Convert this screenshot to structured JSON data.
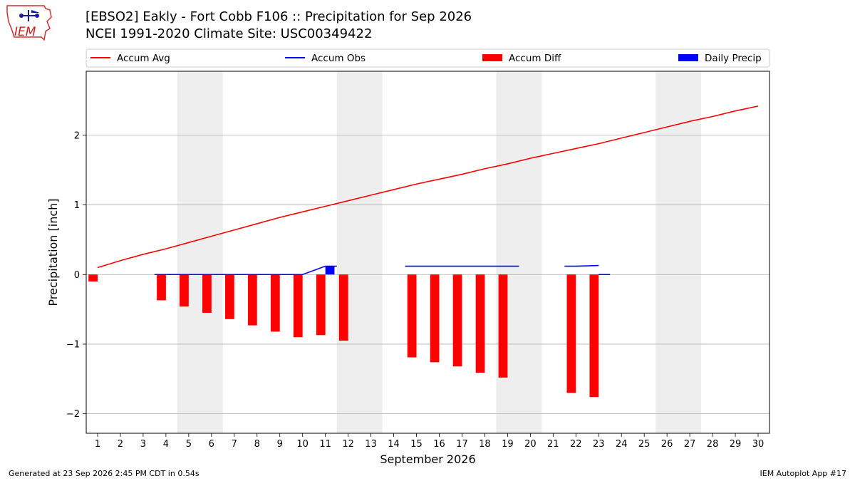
{
  "title": "[EBSO2] Eakly - Fort Cobb F106 :: Precipitation for Sep 2026",
  "subtitle": "NCEI 1991-2020 Climate Site: USC00349422",
  "footer_left": "Generated at 23 Sep 2026 2:45 PM CDT in 0.54s",
  "footer_right": "IEM Autoplot App #17",
  "logo_text": "IEM",
  "colors": {
    "avg": "#ff0000",
    "obs": "#0000ff",
    "diff": "#ff0000",
    "daily": "#0000ff",
    "weekend": "#eeeeee",
    "grid": "#b0b0b0"
  },
  "chart_data": {
    "type": "bar",
    "xlabel": "September 2026",
    "ylabel": "Precipitation [inch]",
    "xlim": [
      0.5,
      30.5
    ],
    "ylim": [
      -2.28,
      2.92
    ],
    "x_ticks": [
      1,
      2,
      3,
      4,
      5,
      6,
      7,
      8,
      9,
      10,
      11,
      12,
      13,
      14,
      15,
      16,
      17,
      18,
      19,
      20,
      21,
      22,
      23,
      24,
      25,
      26,
      27,
      28,
      29,
      30
    ],
    "y_ticks": [
      -2,
      -1,
      0,
      1,
      2
    ],
    "y_tick_labels": [
      "−2",
      "−1",
      "0",
      "1",
      "2"
    ],
    "grid": "y",
    "legend_position": "top",
    "weekend_spans": [
      [
        4.5,
        6.5
      ],
      [
        11.5,
        13.5
      ],
      [
        18.5,
        20.5
      ],
      [
        25.5,
        27.5
      ]
    ],
    "series": [
      {
        "name": "Accum Avg",
        "kind": "line",
        "x": [
          1,
          2,
          3,
          4,
          5,
          6,
          7,
          8,
          9,
          10,
          11,
          12,
          13,
          14,
          15,
          16,
          17,
          18,
          19,
          20,
          21,
          22,
          23,
          24,
          25,
          26,
          27,
          28,
          29,
          30
        ],
        "values": [
          0.1,
          0.2,
          0.29,
          0.37,
          0.46,
          0.55,
          0.64,
          0.73,
          0.82,
          0.9,
          0.98,
          1.06,
          1.14,
          1.22,
          1.3,
          1.37,
          1.44,
          1.52,
          1.59,
          1.67,
          1.74,
          1.81,
          1.88,
          1.96,
          2.04,
          2.12,
          2.2,
          2.27,
          2.35,
          2.42
        ]
      },
      {
        "name": "Accum Obs",
        "kind": "step",
        "segments": [
          {
            "x": [
              3.5,
              4,
              5,
              6,
              7,
              8,
              9,
              10,
              11,
              11.5
            ],
            "values": [
              0,
              0,
              0,
              0,
              0,
              0,
              0,
              0,
              0.12,
              0.12
            ]
          },
          {
            "x": [
              14.5,
              15,
              16,
              17,
              18,
              19,
              19.5
            ],
            "values": [
              0.12,
              0.12,
              0.12,
              0.12,
              0.12,
              0.12,
              0.12
            ]
          },
          {
            "x": [
              21.5,
              22,
              23
            ],
            "values": [
              0.12,
              0.12,
              0.13
            ]
          },
          {
            "x": [
              23,
              23.5
            ],
            "values": [
              0,
              0
            ]
          }
        ]
      },
      {
        "name": "Accum Diff",
        "kind": "bar",
        "offset": -0.2,
        "width": 0.4,
        "x": [
          1,
          4,
          5,
          6,
          7,
          8,
          9,
          10,
          11,
          12,
          15,
          16,
          17,
          18,
          19,
          22,
          23
        ],
        "values": [
          -0.1,
          -0.37,
          -0.46,
          -0.55,
          -0.64,
          -0.73,
          -0.82,
          -0.9,
          -0.87,
          -0.95,
          -1.19,
          -1.26,
          -1.32,
          -1.41,
          -1.48,
          -1.7,
          -1.76
        ]
      },
      {
        "name": "Daily Precip",
        "kind": "bar",
        "offset": 0.2,
        "width": 0.4,
        "x": [
          11
        ],
        "values": [
          0.12
        ]
      }
    ]
  }
}
